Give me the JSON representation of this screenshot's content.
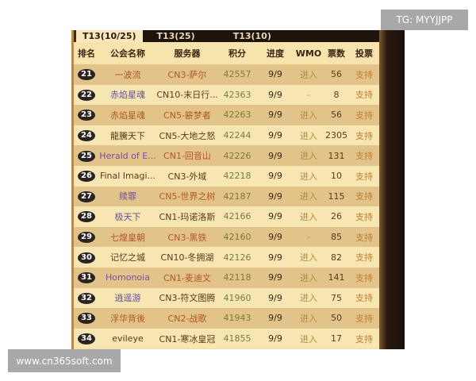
{
  "tabs": [
    "T13(10/25)",
    "T13(25)",
    "T13(10)"
  ],
  "headers": [
    "排名",
    "公会名称",
    "服务器",
    "积分",
    "进度",
    "WMO",
    "票数",
    "投票"
  ],
  "rows": [
    {
      "rank": "21",
      "name": "一波流",
      "name_color": "#b0562a",
      "server": "CN3-萨尔",
      "server_color": "#b0562a",
      "score": "42557",
      "progress": "9/9",
      "wmo": "进入",
      "votes": "56",
      "vote": "支持"
    },
    {
      "rank": "22",
      "name": "赤焰星魂",
      "name_color": "#6a4a9a",
      "server": "CN10-末日行...",
      "server_color": "#5a3a1a",
      "score": "42363",
      "progress": "9/9",
      "wmo": "-",
      "votes": "8",
      "vote": "支持"
    },
    {
      "rank": "23",
      "name": "赤焰星魂",
      "name_color": "#b0562a",
      "server": "CN5-簖梦者",
      "server_color": "#b0562a",
      "score": "42263",
      "progress": "9/9",
      "wmo": "进入",
      "votes": "56",
      "vote": "支持"
    },
    {
      "rank": "24",
      "name": "龍騰天下",
      "name_color": "#5a3a1a",
      "server": "CN5-大地之怒",
      "server_color": "#5a3a1a",
      "score": "42244",
      "progress": "9/9",
      "wmo": "进入",
      "votes": "2305",
      "vote": "支持"
    },
    {
      "rank": "25",
      "name": "Herald of E...",
      "name_color": "#7a4aaa",
      "server": "CN1-回音山",
      "server_color": "#b0562a",
      "score": "42226",
      "progress": "9/9",
      "wmo": "进入",
      "votes": "131",
      "vote": "支持"
    },
    {
      "rank": "26",
      "name": "Final Imagi...",
      "name_color": "#5a3a1a",
      "server": "CN3-外域",
      "server_color": "#5a3a1a",
      "score": "42218",
      "progress": "9/9",
      "wmo": "进入",
      "votes": "10",
      "vote": "支持"
    },
    {
      "rank": "27",
      "name": "赎罪",
      "name_color": "#7a4aaa",
      "server": "CN5-世界之树",
      "server_color": "#b0562a",
      "score": "42187",
      "progress": "9/9",
      "wmo": "进入",
      "votes": "115",
      "vote": "支持"
    },
    {
      "rank": "28",
      "name": "极天下",
      "name_color": "#6a4a9a",
      "server": "CN1-玛诺洛斯",
      "server_color": "#5a3a1a",
      "score": "42166",
      "progress": "9/9",
      "wmo": "进入",
      "votes": "26",
      "vote": "支持"
    },
    {
      "rank": "29",
      "name": "七煌皇朝",
      "name_color": "#b0562a",
      "server": "CN3-黑铁",
      "server_color": "#b0562a",
      "score": "42160",
      "progress": "9/9",
      "wmo": "-",
      "votes": "85",
      "vote": "支持"
    },
    {
      "rank": "30",
      "name": "记忆之城",
      "name_color": "#5a3a1a",
      "server": "CN10-冬拥湖",
      "server_color": "#5a3a1a",
      "score": "42126",
      "progress": "9/9",
      "wmo": "进入",
      "votes": "82",
      "vote": "支持"
    },
    {
      "rank": "31",
      "name": "Homonoia",
      "name_color": "#7a4aaa",
      "server": "CN1-麦迪文",
      "server_color": "#b0562a",
      "score": "42118",
      "progress": "9/9",
      "wmo": "进入",
      "votes": "141",
      "vote": "支持"
    },
    {
      "rank": "32",
      "name": "逍遥游",
      "name_color": "#6a4a9a",
      "server": "CN3-符文图腾",
      "server_color": "#5a3a1a",
      "score": "41960",
      "progress": "9/9",
      "wmo": "进入",
      "votes": "75",
      "vote": "支持"
    },
    {
      "rank": "33",
      "name": "浮华背後",
      "name_color": "#b0562a",
      "server": "CN2-战歌",
      "server_color": "#b0562a",
      "score": "41943",
      "progress": "9/9",
      "wmo": "进入",
      "votes": "50",
      "vote": "支持"
    },
    {
      "rank": "34",
      "name": "evileye",
      "name_color": "#5a3a1a",
      "server": "CN1-寒冰皇冠",
      "server_color": "#5a3a1a",
      "score": "41855",
      "progress": "9/9",
      "wmo": "进入",
      "votes": "17",
      "vote": "支持"
    }
  ],
  "watermarks": {
    "top": "TG: MYYJJPP",
    "bottom": "www.cn365soft.com"
  }
}
